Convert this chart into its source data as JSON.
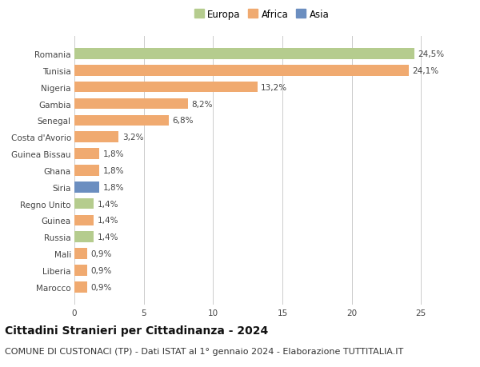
{
  "categories": [
    "Marocco",
    "Liberia",
    "Mali",
    "Russia",
    "Guinea",
    "Regno Unito",
    "Siria",
    "Ghana",
    "Guinea Bissau",
    "Costa d'Avorio",
    "Senegal",
    "Gambia",
    "Nigeria",
    "Tunisia",
    "Romania"
  ],
  "values": [
    0.9,
    0.9,
    0.9,
    1.4,
    1.4,
    1.4,
    1.8,
    1.8,
    1.8,
    3.2,
    6.8,
    8.2,
    13.2,
    24.1,
    24.5
  ],
  "labels": [
    "0,9%",
    "0,9%",
    "0,9%",
    "1,4%",
    "1,4%",
    "1,4%",
    "1,8%",
    "1,8%",
    "1,8%",
    "3,2%",
    "6,8%",
    "8,2%",
    "13,2%",
    "24,1%",
    "24,5%"
  ],
  "continents": [
    "Africa",
    "Africa",
    "Africa",
    "Europa",
    "Africa",
    "Europa",
    "Asia",
    "Africa",
    "Africa",
    "Africa",
    "Africa",
    "Africa",
    "Africa",
    "Africa",
    "Europa"
  ],
  "colors": {
    "Europa": "#b5cc8e",
    "Africa": "#f0aa70",
    "Asia": "#6b8ec0"
  },
  "legend_labels": [
    "Europa",
    "Africa",
    "Asia"
  ],
  "legend_colors": [
    "#b5cc8e",
    "#f0aa70",
    "#6b8ec0"
  ],
  "title": "Cittadini Stranieri per Cittadinanza - 2024",
  "subtitle": "COMUNE DI CUSTONACI (TP) - Dati ISTAT al 1° gennaio 2024 - Elaborazione TUTTITALIA.IT",
  "xlim": [
    0,
    27
  ],
  "xticks": [
    0,
    5,
    10,
    15,
    20,
    25
  ],
  "background_color": "#ffffff",
  "grid_color": "#cccccc",
  "bar_height": 0.65,
  "title_fontsize": 10,
  "subtitle_fontsize": 8,
  "label_fontsize": 7.5,
  "tick_fontsize": 7.5,
  "legend_fontsize": 8.5
}
